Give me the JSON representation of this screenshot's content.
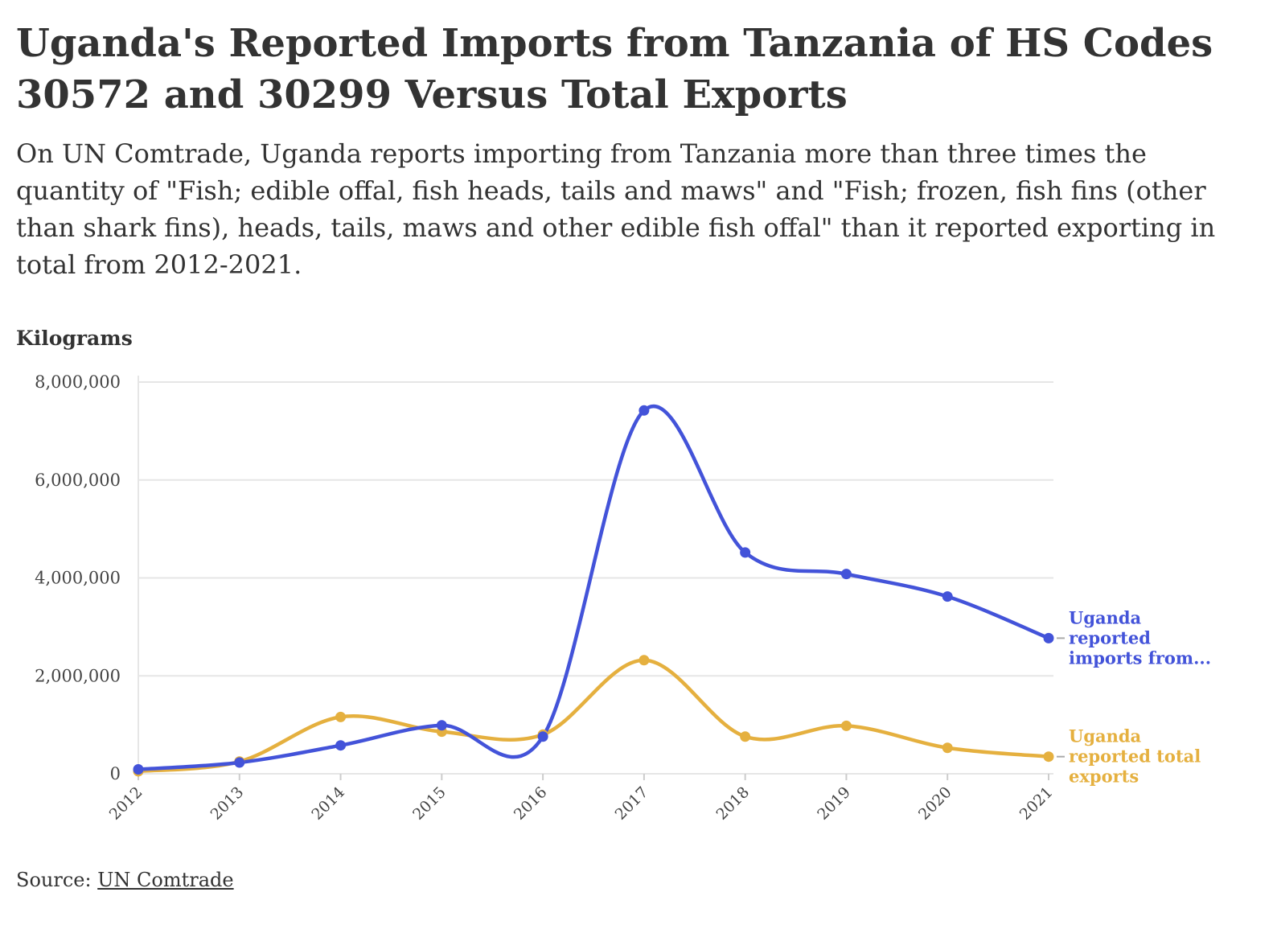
{
  "title": "Uganda's Reported Imports from Tanzania of HS Codes 30572 and 30299 Versus Total Exports",
  "subtitle": "On UN Comtrade, Uganda reports importing from Tanzania more than three times the quantity of \"Fish; edible offal, fish heads, tails and maws\" and \"Fish; frozen, fish fins (other than shark fins), heads, tails, maws and other edible fish offal\" than it reported exporting in total from 2012-2021.",
  "source": {
    "prefix": "Source: ",
    "link_text": "UN Comtrade"
  },
  "chart_data": {
    "type": "line",
    "title": "Uganda's Reported Imports from Tanzania of HS Codes 30572 and 30299 Versus Total Exports",
    "ylabel": "Kilograms",
    "xlabel": "",
    "categories": [
      "2012",
      "2013",
      "2014",
      "2015",
      "2016",
      "2017",
      "2018",
      "2019",
      "2020",
      "2021"
    ],
    "ylim": [
      0,
      8000000
    ],
    "yticks": [
      0,
      2000000,
      4000000,
      6000000,
      8000000
    ],
    "ytick_labels": [
      "0",
      "2,000,000",
      "4,000,000",
      "6,000,000",
      "8,000,000"
    ],
    "grid": true,
    "legend": "inline labels at line ends",
    "series": [
      {
        "name": "Uganda reported imports from...",
        "label_lines": [
          "Uganda",
          "reported",
          "imports from..."
        ],
        "color": "#4353d9",
        "values": [
          90000,
          230000,
          580000,
          990000,
          760000,
          7420000,
          4520000,
          4080000,
          3620000,
          2770000
        ]
      },
      {
        "name": "Uganda reported total exports",
        "label_lines": [
          "Uganda",
          "reported total",
          "exports"
        ],
        "color": "#e5b03f",
        "values": [
          50000,
          250000,
          1160000,
          860000,
          800000,
          2320000,
          760000,
          980000,
          530000,
          350000
        ]
      }
    ]
  }
}
